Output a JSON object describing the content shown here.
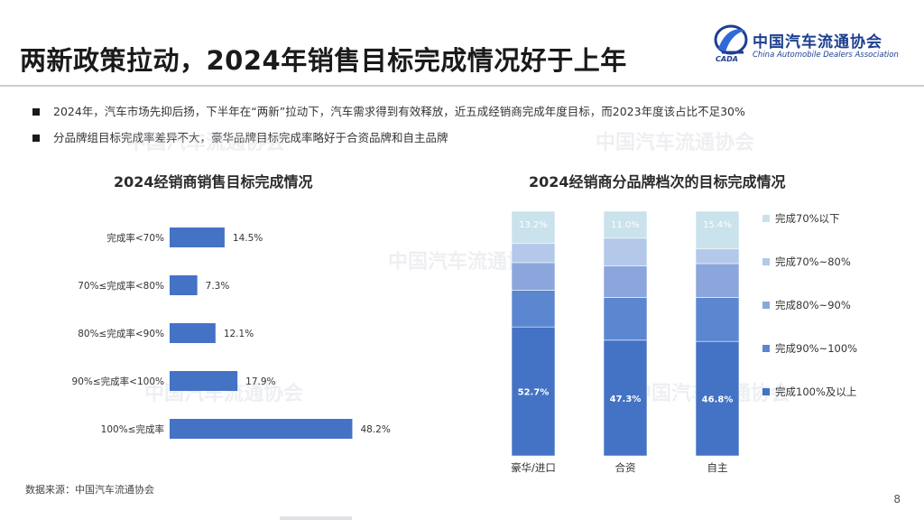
{
  "page": {
    "title": "两新政策拉动，2024年销售目标完成情况好于上年",
    "bullets": [
      "2024年，汽车市场先抑后扬，下半年在“两新”拉动下，汽车需求得到有效释放，近五成经销商完成年度目标，而2023年度该占比不足30%",
      "分品牌组目标完成率差异不大，豪华品牌目标完成率略好于合资品牌和自主品牌"
    ],
    "source": "数据来源：中国汽车流通协会",
    "page_number": "8"
  },
  "logo": {
    "cn": "中国汽车流通协会",
    "en": "China Automobile Dealers Association",
    "abbr": "CADA"
  },
  "watermark": {
    "cn": "中国汽车流通协会"
  },
  "colors": {
    "bar": "#4472c4",
    "seg_100": "#4472c4",
    "seg_90": "#5b86d0",
    "seg_80": "#8aa6dc",
    "seg_70": "#b4c8ea",
    "seg_below70": "#c9e2ec"
  },
  "chart_data": [
    {
      "type": "bar",
      "orientation": "horizontal",
      "title": "2024经销商销售目标完成情况",
      "categories": [
        "完成率<70%",
        "70%≤完成率<80%",
        "80%≤完成率<90%",
        "90%≤完成率<100%",
        "100%≤完成率"
      ],
      "values": [
        14.5,
        7.3,
        12.1,
        17.9,
        48.2
      ],
      "value_labels": [
        "14.5%",
        "7.3%",
        "12.1%",
        "17.9%",
        "48.2%"
      ],
      "xlabel": "",
      "ylabel": "",
      "xlim": [
        0,
        50
      ],
      "grid": false,
      "legend": "none"
    },
    {
      "type": "bar",
      "stacked": true,
      "title": "2024经销商分品牌档次的目标完成情况",
      "categories": [
        "豪华/进口",
        "合资",
        "自主"
      ],
      "series": [
        {
          "name": "完成100%及以上",
          "values": [
            52.7,
            47.3,
            46.8
          ],
          "labels": [
            "52.7%",
            "47.3%",
            "46.8%"
          ]
        },
        {
          "name": "完成90%~100%",
          "values": [
            15.0,
            17.5,
            18.0
          ],
          "labels": [
            "",
            "",
            ""
          ]
        },
        {
          "name": "完成80%~90%",
          "values": [
            11.3,
            12.9,
            13.8
          ],
          "labels": [
            "",
            "",
            ""
          ]
        },
        {
          "name": "完成70%~80%",
          "values": [
            7.8,
            11.3,
            6.0
          ],
          "labels": [
            "",
            "",
            ""
          ]
        },
        {
          "name": "完成70%以下",
          "values": [
            13.2,
            11.0,
            15.4
          ],
          "labels": [
            "13.2%",
            "11.0%",
            "15.4%"
          ]
        }
      ],
      "legend_order": [
        "完成70%以下",
        "完成70%~80%",
        "完成80%~90%",
        "完成90%~100%",
        "完成100%及以上"
      ],
      "ylim": [
        0,
        100
      ],
      "grid": false,
      "legend": "right"
    }
  ]
}
